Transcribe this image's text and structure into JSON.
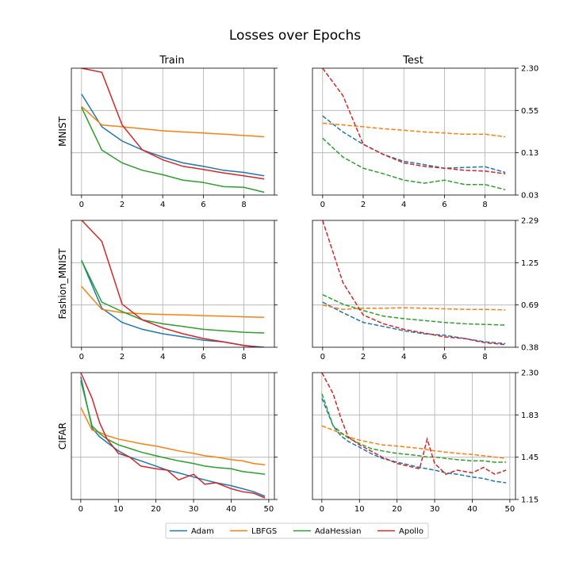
{
  "title": "Losses over Epochs",
  "column_titles": [
    "Train",
    "Test"
  ],
  "row_labels": [
    "MNIST",
    "Fashion_MNIST",
    "CIFAR"
  ],
  "legend": [
    "Adam",
    "LBFGS",
    "AdaHessian",
    "Apollo"
  ],
  "colors": {
    "Adam": "#1f77b4",
    "LBFGS": "#ff7f0e",
    "AdaHessian": "#2ca02c",
    "Apollo": "#d62728"
  },
  "chart_data": [
    {
      "type": "line",
      "dataset": "MNIST",
      "split": "Train",
      "line_style": "solid",
      "y_scale": "log",
      "ylim": [
        0.03,
        2.3
      ],
      "xlim": [
        -0.5,
        9.5
      ],
      "x_ticks": [
        "0",
        "2",
        "4",
        "6",
        "8"
      ],
      "y_ticks": [],
      "x": [
        0,
        1,
        2,
        3,
        4,
        5,
        6,
        7,
        8,
        9
      ],
      "series": [
        {
          "name": "Adam",
          "values": [
            0.95,
            0.31,
            0.19,
            0.14,
            0.11,
            0.09,
            0.08,
            0.07,
            0.065,
            0.058
          ]
        },
        {
          "name": "LBFGS",
          "values": [
            0.62,
            0.33,
            0.31,
            0.29,
            0.27,
            0.26,
            0.25,
            0.24,
            0.23,
            0.22
          ]
        },
        {
          "name": "AdaHessian",
          "values": [
            0.6,
            0.14,
            0.09,
            0.07,
            0.06,
            0.05,
            0.046,
            0.04,
            0.039,
            0.033
          ]
        },
        {
          "name": "Apollo",
          "values": [
            2.3,
            2.0,
            0.33,
            0.14,
            0.1,
            0.08,
            0.072,
            0.064,
            0.058,
            0.052
          ]
        }
      ]
    },
    {
      "type": "line",
      "dataset": "MNIST",
      "split": "Test",
      "line_style": "dashed",
      "y_scale": "log",
      "ylim": [
        0.03,
        2.3
      ],
      "xlim": [
        -0.5,
        9.5
      ],
      "x_ticks": [
        "0",
        "2",
        "4",
        "6",
        "8"
      ],
      "y_ticks": [
        "0.03",
        "0.13",
        "0.55",
        "2.30"
      ],
      "x": [
        0,
        1,
        2,
        3,
        4,
        5,
        6,
        7,
        8,
        9
      ],
      "series": [
        {
          "name": "Adam",
          "values": [
            0.45,
            0.26,
            0.17,
            0.12,
            0.095,
            0.085,
            0.075,
            0.077,
            0.079,
            0.065
          ]
        },
        {
          "name": "LBFGS",
          "values": [
            0.35,
            0.33,
            0.31,
            0.29,
            0.275,
            0.26,
            0.25,
            0.24,
            0.24,
            0.22
          ]
        },
        {
          "name": "AdaHessian",
          "values": [
            0.21,
            0.11,
            0.075,
            0.062,
            0.05,
            0.045,
            0.05,
            0.043,
            0.043,
            0.036
          ]
        },
        {
          "name": "Apollo",
          "values": [
            2.3,
            0.9,
            0.17,
            0.12,
            0.09,
            0.08,
            0.075,
            0.07,
            0.068,
            0.062
          ]
        }
      ]
    },
    {
      "type": "line",
      "dataset": "Fashion_MNIST",
      "split": "Train",
      "line_style": "solid",
      "y_scale": "log",
      "ylim": [
        0.38,
        2.29
      ],
      "xlim": [
        -0.5,
        9.5
      ],
      "x_ticks": [
        "0",
        "2",
        "4",
        "6",
        "8"
      ],
      "y_ticks": [],
      "x": [
        0,
        1,
        2,
        3,
        4,
        5,
        6,
        7,
        8,
        9
      ],
      "series": [
        {
          "name": "Adam",
          "values": [
            1.3,
            0.66,
            0.54,
            0.49,
            0.46,
            0.44,
            0.42,
            0.41,
            0.39,
            0.38
          ]
        },
        {
          "name": "LBFGS",
          "values": [
            0.9,
            0.65,
            0.62,
            0.61,
            0.605,
            0.6,
            0.595,
            0.59,
            0.585,
            0.58
          ]
        },
        {
          "name": "AdaHessian",
          "values": [
            1.3,
            0.72,
            0.63,
            0.56,
            0.53,
            0.51,
            0.49,
            0.48,
            0.47,
            0.465
          ]
        },
        {
          "name": "Apollo",
          "values": [
            2.3,
            1.7,
            0.7,
            0.56,
            0.5,
            0.46,
            0.43,
            0.41,
            0.39,
            0.375
          ]
        }
      ]
    },
    {
      "type": "line",
      "dataset": "Fashion_MNIST",
      "split": "Test",
      "line_style": "dashed",
      "y_scale": "log",
      "ylim": [
        0.38,
        2.29
      ],
      "xlim": [
        -0.5,
        9.5
      ],
      "x_ticks": [
        "0",
        "2",
        "4",
        "6",
        "8"
      ],
      "y_ticks": [
        "0.38",
        "0.69",
        "1.25",
        "2.29"
      ],
      "x": [
        0,
        1,
        2,
        3,
        4,
        5,
        6,
        7,
        8,
        9
      ],
      "series": [
        {
          "name": "Adam",
          "values": [
            0.72,
            0.62,
            0.54,
            0.51,
            0.48,
            0.46,
            0.45,
            0.43,
            0.41,
            0.4
          ]
        },
        {
          "name": "LBFGS",
          "values": [
            0.69,
            0.65,
            0.66,
            0.66,
            0.665,
            0.66,
            0.655,
            0.65,
            0.65,
            0.645
          ]
        },
        {
          "name": "AdaHessian",
          "values": [
            0.8,
            0.7,
            0.64,
            0.59,
            0.57,
            0.555,
            0.54,
            0.53,
            0.525,
            0.52
          ]
        },
        {
          "name": "Apollo",
          "values": [
            2.29,
            0.95,
            0.6,
            0.53,
            0.49,
            0.465,
            0.44,
            0.43,
            0.405,
            0.395
          ]
        }
      ]
    },
    {
      "type": "line",
      "dataset": "CIFAR",
      "split": "Train",
      "line_style": "solid",
      "y_scale": "log",
      "ylim": [
        1.15,
        2.3
      ],
      "xlim": [
        -2.5,
        51.5
      ],
      "x_ticks": [
        "0",
        "10",
        "20",
        "30",
        "40",
        "50"
      ],
      "y_ticks": [],
      "x": [
        0,
        3,
        5,
        7,
        10,
        13,
        16,
        20,
        23,
        26,
        30,
        33,
        36,
        40,
        43,
        46,
        49
      ],
      "series": [
        {
          "name": "Adam",
          "values": [
            2.25,
            1.7,
            1.62,
            1.57,
            1.5,
            1.45,
            1.42,
            1.38,
            1.35,
            1.33,
            1.3,
            1.28,
            1.26,
            1.24,
            1.22,
            1.2,
            1.17
          ]
        },
        {
          "name": "LBFGS",
          "values": [
            1.9,
            1.68,
            1.66,
            1.63,
            1.6,
            1.58,
            1.56,
            1.54,
            1.52,
            1.5,
            1.48,
            1.46,
            1.45,
            1.43,
            1.42,
            1.4,
            1.39
          ]
        },
        {
          "name": "AdaHessian",
          "values": [
            2.2,
            1.72,
            1.65,
            1.6,
            1.55,
            1.52,
            1.49,
            1.46,
            1.44,
            1.42,
            1.4,
            1.38,
            1.37,
            1.36,
            1.34,
            1.33,
            1.32
          ]
        },
        {
          "name": "Apollo",
          "values": [
            2.3,
            2.0,
            1.75,
            1.6,
            1.48,
            1.45,
            1.38,
            1.36,
            1.35,
            1.28,
            1.32,
            1.25,
            1.26,
            1.22,
            1.2,
            1.19,
            1.16
          ]
        }
      ]
    },
    {
      "type": "line",
      "dataset": "CIFAR",
      "split": "Test",
      "line_style": "dashed",
      "y_scale": "log",
      "ylim": [
        1.15,
        2.3
      ],
      "xlim": [
        -2.5,
        51.5
      ],
      "x_ticks": [
        "0",
        "10",
        "20",
        "30",
        "40",
        "50"
      ],
      "y_ticks": [
        "1.15",
        "1.45",
        "1.83",
        "2.30"
      ],
      "x": [
        0,
        3,
        5,
        7,
        10,
        13,
        16,
        20,
        23,
        26,
        28,
        30,
        33,
        36,
        40,
        43,
        46,
        49
      ],
      "series": [
        {
          "name": "Adam",
          "values": [
            2.0,
            1.72,
            1.63,
            1.58,
            1.53,
            1.48,
            1.44,
            1.41,
            1.39,
            1.37,
            1.36,
            1.35,
            1.33,
            1.32,
            1.3,
            1.29,
            1.27,
            1.26
          ]
        },
        {
          "name": "LBFGS",
          "values": [
            1.72,
            1.68,
            1.65,
            1.62,
            1.59,
            1.57,
            1.55,
            1.54,
            1.53,
            1.52,
            1.51,
            1.5,
            1.49,
            1.48,
            1.47,
            1.46,
            1.45,
            1.44
          ]
        },
        {
          "name": "AdaHessian",
          "values": [
            2.05,
            1.72,
            1.66,
            1.61,
            1.56,
            1.52,
            1.5,
            1.48,
            1.47,
            1.46,
            1.45,
            1.45,
            1.44,
            1.43,
            1.42,
            1.42,
            1.41,
            1.41
          ]
        },
        {
          "name": "Apollo",
          "values": [
            2.3,
            2.05,
            1.8,
            1.62,
            1.55,
            1.5,
            1.45,
            1.4,
            1.38,
            1.36,
            1.6,
            1.4,
            1.32,
            1.35,
            1.33,
            1.37,
            1.32,
            1.35
          ]
        }
      ]
    }
  ]
}
